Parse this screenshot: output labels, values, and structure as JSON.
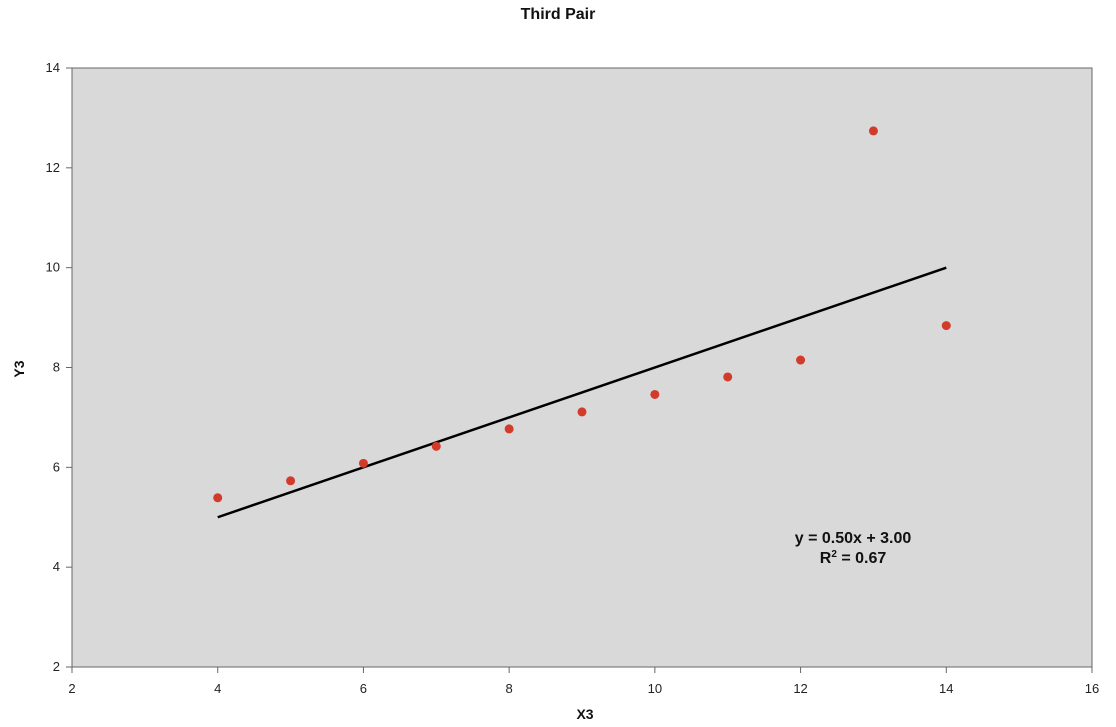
{
  "chart_data": {
    "type": "scatter",
    "title": "Third Pair",
    "xlabel": "X3",
    "ylabel": "Y3",
    "xlim": [
      2,
      16
    ],
    "ylim": [
      2,
      14
    ],
    "x_ticks": [
      2,
      4,
      6,
      8,
      10,
      12,
      14,
      16
    ],
    "y_ticks": [
      2,
      4,
      6,
      8,
      10,
      12,
      14
    ],
    "x_tick_labels": [
      "2",
      "4",
      "6",
      "8",
      "10",
      "12",
      "14",
      "16"
    ],
    "y_tick_labels": [
      "2",
      "4",
      "6",
      "8",
      "10",
      "12",
      "14"
    ],
    "grid": false,
    "legend": "none",
    "series": [
      {
        "x": [
          4,
          5,
          6,
          7,
          8,
          9,
          10,
          11,
          12,
          13,
          14
        ],
        "y": [
          5.39,
          5.73,
          6.08,
          6.42,
          6.77,
          7.11,
          7.46,
          7.81,
          8.15,
          12.74,
          8.84
        ],
        "color": "#d23a2a"
      }
    ],
    "trendline": {
      "slope": 0.5,
      "intercept": 3.0,
      "x_range": [
        4,
        14
      ],
      "color": "#000000"
    },
    "annotations": {
      "equation": "y = 0.50x + 3.00",
      "r2_prefix": "R",
      "r2_exp": "2",
      "r2_suffix": " = 0.67"
    },
    "plot_background": "#d9d9d9",
    "axis_color": "#666666"
  }
}
